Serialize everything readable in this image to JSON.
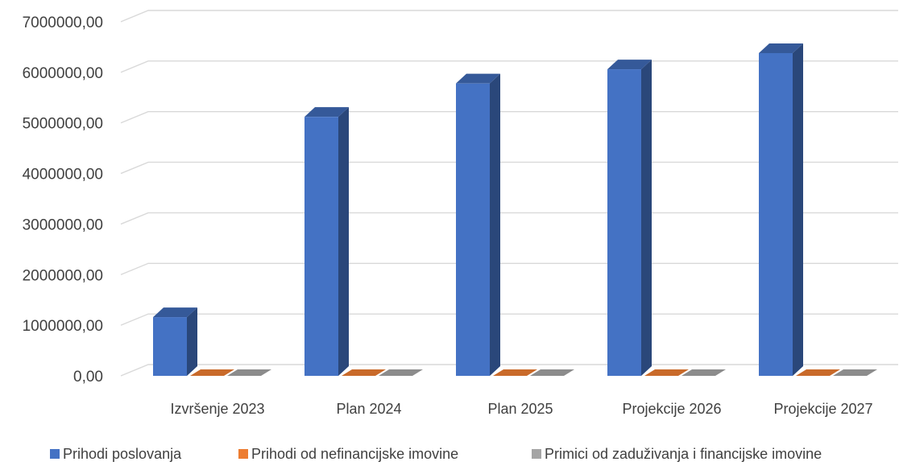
{
  "chart_data": {
    "type": "bar",
    "style": "3d-clustered-column",
    "categories": [
      "Izvršenje 2023",
      "Plan 2024",
      "Plan 2025",
      "Projekcije 2026",
      "Projekcije 2027"
    ],
    "series": [
      {
        "name": "Prihodi poslovanja",
        "color": "#4472C4",
        "values": [
          1160000,
          5120000,
          5780000,
          6060000,
          6380000
        ]
      },
      {
        "name": "Prihodi od nefinancijske imovine",
        "color": "#ED7D31",
        "values": [
          0,
          0,
          0,
          0,
          0
        ]
      },
      {
        "name": "Primici od zaduživanja i financijske imovine",
        "color": "#A5A5A5",
        "values": [
          0,
          0,
          0,
          0,
          0
        ]
      }
    ],
    "ylim": [
      0,
      7000000
    ],
    "ytick_values": [
      0,
      1000000,
      2000000,
      3000000,
      4000000,
      5000000,
      6000000,
      7000000
    ],
    "ytick_labels": [
      "0,00",
      "1000000,00",
      "2000000,00",
      "3000000,00",
      "4000000,00",
      "5000000,00",
      "6000000,00",
      "7000000,00"
    ],
    "grid": true,
    "legend_position": "bottom"
  }
}
